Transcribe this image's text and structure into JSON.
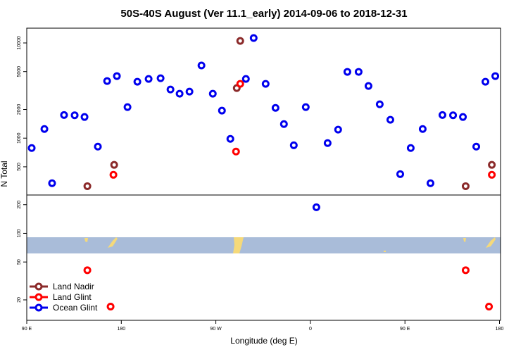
{
  "chart_data": {
    "type": "scatter",
    "title": "50S-40S August (Ver 11.1_early)   2014-09-06 to 2018-12-31",
    "x_label": "Longitude (deg E)",
    "y_label": "N Total",
    "log_y": true,
    "legend": "bottom-left",
    "xlim": [
      90,
      541
    ],
    "ylim": [
      12.2,
      14300
    ],
    "xticks": [
      {
        "value": 90,
        "label": "90 E"
      },
      180,
      {
        "value": 270,
        "label": "90 W"
      },
      {
        "value": 360,
        "label": "0"
      },
      {
        "value": 450,
        "label": "90 E"
      },
      {
        "value": 540,
        "label": "180"
      }
    ],
    "yticks": [
      20,
      50,
      100,
      200,
      500,
      1000,
      2000,
      5000,
      10000
    ],
    "series": [
      {
        "name": "Land Nadir",
        "color": "#8b2a2a",
        "x": [
          147.7,
          173.2,
          289.9,
          293.2,
          507.8,
          532.7
        ],
        "values": [
          313,
          524,
          3357,
          10500,
          313,
          524
        ]
      },
      {
        "name": "Land Glint",
        "color": "#ff0000",
        "x": [
          147.7,
          169.8,
          172.5,
          289.2,
          293.2,
          507.8,
          530,
          532.7
        ],
        "values": [
          41,
          17,
          412,
          723,
          3720,
          41,
          17,
          412
        ]
      },
      {
        "name": "Ocean Glint",
        "color": "#0000ee",
        "x": [
          94.7,
          106.8,
          114.1,
          125.5,
          135.6,
          145,
          157.7,
          166.5,
          175.8,
          185.9,
          195.3,
          206,
          217.4,
          226.8,
          235.5,
          244.9,
          256.3,
          267.1,
          275.8,
          283.8,
          298.6,
          306,
          317.4,
          326.8,
          334.8,
          344.2,
          355.6,
          365.7,
          376.4,
          386.4,
          395.2,
          405.9,
          415.3,
          426,
          436.1,
          445.5,
          455.5,
          466.9,
          474.3,
          485.7,
          495.8,
          505.2,
          517.9,
          526.6,
          536
        ],
        "values": [
          787,
          1248,
          336,
          1750,
          1740,
          1668,
          815,
          3980,
          4487,
          2120,
          3915,
          4190,
          4260,
          3245,
          2930,
          3080,
          5800,
          2930,
          1945,
          983,
          4190,
          11270,
          3720,
          2080,
          1406,
          842,
          2120,
          188,
          888,
          1228,
          4970,
          4970,
          3532,
          2270,
          1559,
          419,
          787,
          1248,
          336,
          1750,
          1740,
          1668,
          815,
          3915,
          4487
        ]
      }
    ]
  }
}
